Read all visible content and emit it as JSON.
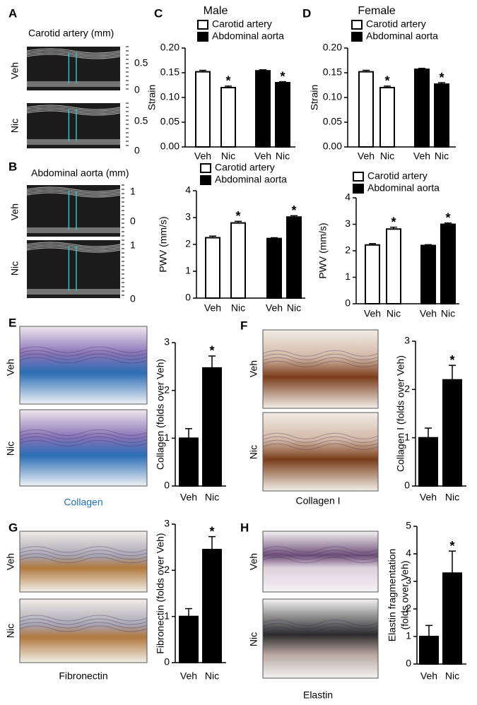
{
  "panels": [
    {
      "letter": "A",
      "title": "Carotid artery  (mm)",
      "rows": [
        {
          "label": "Veh",
          "scale": [
            0.5,
            0
          ]
        },
        {
          "label": "Nic",
          "scale": [
            0.5,
            0
          ]
        }
      ]
    },
    {
      "letter": "B",
      "title": "Abdominal aorta (mm)",
      "rows": [
        {
          "label": "Veh",
          "scale": [
            1,
            0
          ]
        },
        {
          "label": "Nic",
          "scale": [
            1,
            0
          ]
        }
      ]
    },
    {
      "letter": "C"
    },
    {
      "letter": "D"
    },
    {
      "letter": "E",
      "rows": [
        {
          "label": "Veh"
        },
        {
          "label": "Nic"
        }
      ],
      "caption": "Collagen"
    },
    {
      "letter": "F",
      "rows": [
        {
          "label": "Veh"
        },
        {
          "label": "Nic"
        }
      ],
      "caption": "Collagen I"
    },
    {
      "letter": "G",
      "rows": [
        {
          "label": "Veh"
        },
        {
          "label": "Nic"
        }
      ],
      "caption": "Fibronectin"
    },
    {
      "letter": "H",
      "rows": [
        {
          "label": "Veh"
        },
        {
          "label": "Nic"
        }
      ],
      "caption": "Elastin"
    }
  ],
  "chart_data": [
    {
      "type": "bar",
      "title": "Male",
      "ylabel": "Strain",
      "categories": [
        "Veh",
        "Nic"
      ],
      "series": [
        {
          "name": "Carotid artery",
          "color": "#ffffff",
          "values": [
            0.152,
            0.12
          ],
          "errors": [
            0.003,
            0.003
          ],
          "significance": [
            null,
            "*"
          ]
        },
        {
          "name": "Abdominal aorta",
          "color": "#000000",
          "values": [
            0.154,
            0.13
          ],
          "errors": [
            0.002,
            0.002
          ],
          "significance": [
            null,
            "*"
          ]
        }
      ],
      "ylim": [
        0,
        0.2
      ],
      "yticks": [
        {
          "value": 0,
          "label": "0.00"
        },
        {
          "value": 0.05,
          "label": "0.05"
        },
        {
          "value": 0.1,
          "label": "0.10"
        },
        {
          "value": 0.15,
          "label": "0.15"
        },
        {
          "value": 0.2,
          "label": "0.20"
        }
      ]
    },
    {
      "type": "bar",
      "ylabel": "PWV  (mm/s)",
      "categories": [
        "Veh",
        "Nic"
      ],
      "series": [
        {
          "name": "Carotid artery",
          "color": "#ffffff",
          "values": [
            2.25,
            2.8
          ],
          "errors": [
            0.06,
            0.06
          ],
          "significance": [
            null,
            "*"
          ]
        },
        {
          "name": "Abdominal aorta",
          "color": "#000000",
          "values": [
            2.22,
            3.02
          ],
          "errors": [
            0.03,
            0.05
          ],
          "significance": [
            null,
            "*"
          ]
        }
      ],
      "ylim": [
        0,
        4
      ],
      "yticks": [
        0,
        1,
        2,
        3,
        4
      ]
    },
    {
      "type": "bar",
      "title": "Female",
      "ylabel": "Strain",
      "categories": [
        "Veh",
        "Nic"
      ],
      "series": [
        {
          "name": "Carotid artery",
          "color": "#ffffff",
          "values": [
            0.152,
            0.12
          ],
          "errors": [
            0.003,
            0.003
          ],
          "significance": [
            null,
            "*"
          ]
        },
        {
          "name": "Abdominal aorta",
          "color": "#000000",
          "values": [
            0.157,
            0.127
          ],
          "errors": [
            0.002,
            0.003
          ],
          "significance": [
            null,
            "*"
          ]
        }
      ],
      "ylim": [
        0,
        0.2
      ],
      "yticks": [
        {
          "value": 0,
          "label": "0.00"
        },
        {
          "value": 0.05,
          "label": "0.05"
        },
        {
          "value": 0.1,
          "label": "0.10"
        },
        {
          "value": 0.15,
          "label": "0.15"
        },
        {
          "value": 0.2,
          "label": "0.20"
        }
      ]
    },
    {
      "type": "bar",
      "ylabel": "PWV  (mm/s)",
      "categories": [
        "Veh",
        "Nic"
      ],
      "series": [
        {
          "name": "Carotid artery",
          "color": "#ffffff",
          "values": [
            2.22,
            2.82
          ],
          "errors": [
            0.05,
            0.07
          ],
          "significance": [
            null,
            "*"
          ]
        },
        {
          "name": "Abdominal aorta",
          "color": "#000000",
          "values": [
            2.2,
            3.0
          ],
          "errors": [
            0.03,
            0.05
          ],
          "significance": [
            null,
            "*"
          ]
        }
      ],
      "ylim": [
        0,
        4
      ],
      "yticks": [
        0,
        1,
        2,
        3,
        4
      ]
    },
    {
      "type": "bar",
      "ylabel": "Collagen (folds over Veh)",
      "categories": [
        "Veh",
        "Nic"
      ],
      "series": [
        {
          "color": "#000000",
          "values": [
            1,
            2.47
          ],
          "errors": [
            0.2,
            0.25
          ],
          "significance": [
            null,
            "*"
          ]
        }
      ],
      "ylim": [
        0,
        3
      ],
      "yticks": [
        0,
        1,
        2,
        3
      ]
    },
    {
      "type": "bar",
      "ylabel": "Collagen I (folds over Veh)",
      "categories": [
        "Veh",
        "Nic"
      ],
      "series": [
        {
          "color": "#000000",
          "values": [
            1,
            2.2
          ],
          "errors": [
            0.2,
            0.3
          ],
          "significance": [
            null,
            "*"
          ]
        }
      ],
      "ylim": [
        0,
        3
      ],
      "yticks": [
        0,
        1,
        2,
        3
      ]
    },
    {
      "type": "bar",
      "ylabel": "Fibronectin (folds over Veh)",
      "categories": [
        "Veh",
        "Nic"
      ],
      "series": [
        {
          "color": "#000000",
          "values": [
            1,
            2.45
          ],
          "errors": [
            0.17,
            0.28
          ],
          "significance": [
            null,
            "*"
          ]
        }
      ],
      "ylim": [
        0,
        3
      ],
      "yticks": [
        0,
        1,
        2,
        3
      ]
    },
    {
      "type": "bar",
      "ylabel": [
        "Elastin fragmentation",
        "(folds over Veh)"
      ],
      "categories": [
        "Veh",
        "Nic"
      ],
      "series": [
        {
          "color": "#000000",
          "values": [
            1,
            3.3
          ],
          "errors": [
            0.4,
            0.8
          ],
          "significance": [
            null,
            "*"
          ]
        }
      ],
      "ylim": [
        0,
        5
      ],
      "yticks": [
        0,
        1,
        2,
        3,
        4,
        5
      ]
    }
  ]
}
